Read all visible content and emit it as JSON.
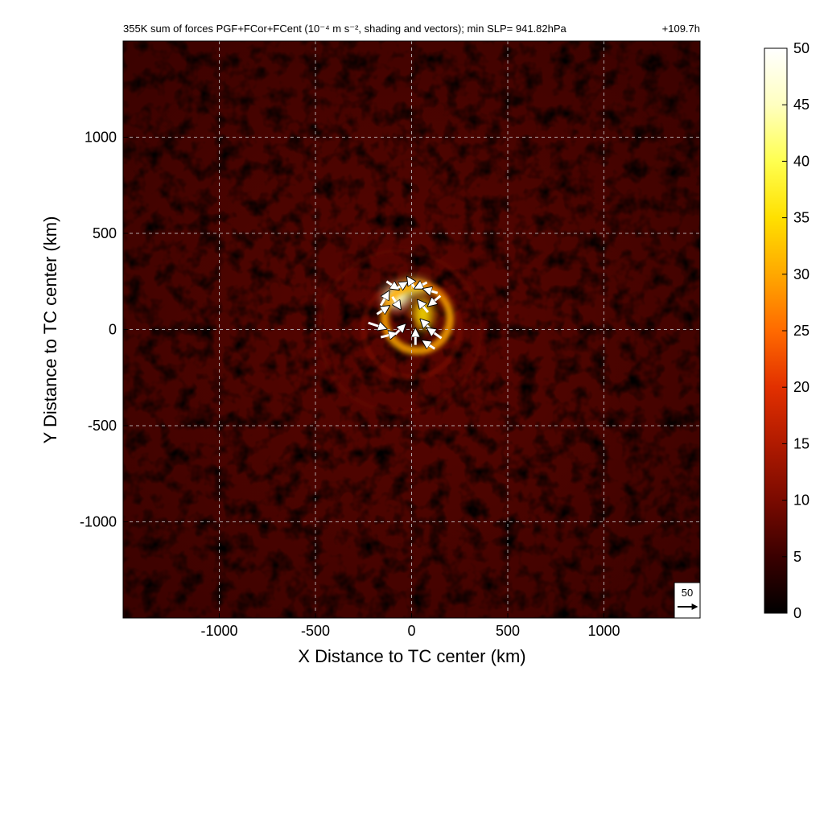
{
  "chart_data": {
    "type": "heatmap",
    "title": "355K sum of forces PGF+FCor+FCent (10⁻⁴ m s⁻², shading and vectors); min SLP= 941.82hPa",
    "time_label": "+109.7h",
    "xlabel": "X Distance to TC center (km)",
    "ylabel": "Y Distance to TC center (km)",
    "xlim": [
      -1500,
      1500
    ],
    "ylim": [
      -1500,
      1500
    ],
    "x_ticks": [
      -1000,
      -500,
      0,
      500,
      1000
    ],
    "y_ticks": [
      -1000,
      -500,
      0,
      500,
      1000
    ],
    "x_tick_labels": [
      "-1000",
      "-500",
      "0",
      "500",
      "1000"
    ],
    "y_tick_labels": [
      "-1000",
      "-500",
      "0",
      "500",
      "1000"
    ],
    "grid": true,
    "colorbar": {
      "min": 0,
      "max": 50,
      "ticks": [
        0,
        5,
        10,
        15,
        20,
        25,
        30,
        35,
        40,
        45,
        50
      ],
      "tick_labels": [
        "0",
        "5",
        "10",
        "15",
        "20",
        "25",
        "30",
        "35",
        "40",
        "45",
        "50"
      ],
      "colormap": [
        "#000000",
        "#3a0000",
        "#7a0a00",
        "#b01a00",
        "#e23000",
        "#ff6a00",
        "#ffa800",
        "#ffe000",
        "#ffff50",
        "#ffffc0",
        "#ffffff"
      ]
    },
    "field_features": [
      {
        "name": "core",
        "x": 0,
        "y": 150,
        "value": 45
      },
      {
        "name": "inner ring",
        "x": 0,
        "y": 100,
        "value": 30
      },
      {
        "name": "outer ring",
        "x": 0,
        "y": 0,
        "value": 14
      },
      {
        "name": "background",
        "value": 6
      }
    ],
    "reference_vector": {
      "label": "50",
      "magnitude": 50
    },
    "vectors": [
      {
        "x": -100,
        "y": 230,
        "u": 30,
        "v": -20
      },
      {
        "x": -50,
        "y": 230,
        "u": 25,
        "v": 15
      },
      {
        "x": 0,
        "y": 240,
        "u": -20,
        "v": 30
      },
      {
        "x": 50,
        "y": 230,
        "u": -30,
        "v": -15
      },
      {
        "x": 100,
        "y": 200,
        "u": -35,
        "v": 10
      },
      {
        "x": 120,
        "y": 150,
        "u": -30,
        "v": -25
      },
      {
        "x": -140,
        "y": 160,
        "u": 20,
        "v": 35
      },
      {
        "x": -150,
        "y": 100,
        "u": 30,
        "v": 20
      },
      {
        "x": -80,
        "y": 140,
        "u": 20,
        "v": -30
      },
      {
        "x": 60,
        "y": 120,
        "u": -25,
        "v": 30
      },
      {
        "x": -180,
        "y": 20,
        "u": 45,
        "v": -15
      },
      {
        "x": -120,
        "y": -30,
        "u": 40,
        "v": 10
      },
      {
        "x": 80,
        "y": 20,
        "u": -30,
        "v": 30
      },
      {
        "x": 120,
        "y": -20,
        "u": -35,
        "v": 25
      },
      {
        "x": 90,
        "y": -80,
        "u": -30,
        "v": 20
      },
      {
        "x": -60,
        "y": 0,
        "u": 25,
        "v": 25
      },
      {
        "x": 20,
        "y": -40,
        "u": 0,
        "v": 40
      }
    ]
  }
}
